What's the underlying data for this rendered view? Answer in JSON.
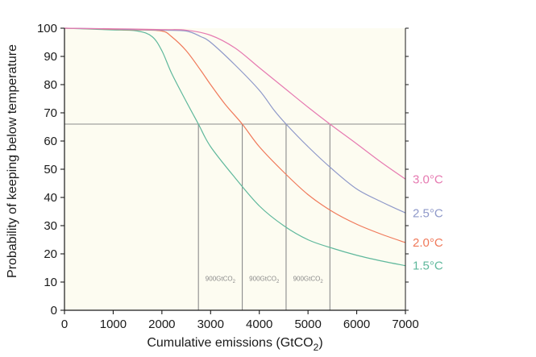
{
  "chart_data": {
    "type": "line",
    "xlabel": "Cumulative emissions (GtCO",
    "xlabel_sub": "2",
    "xlabel_end": ")",
    "ylabel": "Probability of keeping below temperature",
    "xlim": [
      0,
      7000
    ],
    "ylim": [
      0,
      100
    ],
    "xticks": [
      0,
      1000,
      2000,
      3000,
      4000,
      5000,
      6000,
      7000
    ],
    "yticks": [
      0,
      10,
      20,
      30,
      40,
      50,
      60,
      70,
      80,
      90,
      100
    ],
    "plot_background": "#fdfcf1",
    "threshold": 66,
    "threshold_color": "#8c8c8c",
    "series": [
      {
        "name": "1.5°C",
        "color": "#5fb89c",
        "x": [
          0,
          500,
          1000,
          1500,
          1800,
          2000,
          2200,
          2500,
          2750,
          3000,
          3500,
          4000,
          4500,
          5000,
          5500,
          6000,
          6500,
          7000
        ],
        "y": [
          100,
          99.7,
          99.4,
          99,
          97,
          92,
          84,
          74,
          66,
          58,
          47,
          37,
          30,
          25,
          22,
          19.5,
          17.5,
          15.8
        ]
      },
      {
        "name": "2.0°C",
        "color": "#f0795a",
        "x": [
          0,
          500,
          1000,
          1500,
          2000,
          2200,
          2500,
          2800,
          3000,
          3300,
          3650,
          4000,
          4500,
          5000,
          5500,
          6000,
          6500,
          7000
        ],
        "y": [
          100,
          99.8,
          99.6,
          99.4,
          99,
          97,
          92,
          85,
          80,
          73,
          66,
          58,
          49,
          41,
          35,
          30.5,
          27,
          24
        ]
      },
      {
        "name": "2.5°C",
        "color": "#8e98c9",
        "x": [
          0,
          1000,
          2000,
          2500,
          2800,
          3000,
          3500,
          4000,
          4300,
          4550,
          5000,
          5500,
          6000,
          6500,
          7000
        ],
        "y": [
          100,
          99.7,
          99.3,
          99,
          97,
          95,
          87,
          78,
          71,
          66,
          58,
          50,
          43,
          38.5,
          34.5
        ]
      },
      {
        "name": "3.0°C",
        "color": "#e67ab1",
        "x": [
          0,
          1000,
          2000,
          2500,
          3000,
          3500,
          4000,
          4500,
          5000,
          5450,
          6000,
          6500,
          7000
        ],
        "y": [
          100,
          99.8,
          99.5,
          99.3,
          97.5,
          93,
          86,
          79,
          72,
          66,
          59,
          52.5,
          46.5
        ]
      }
    ],
    "threshold_crossings": [
      2750,
      3650,
      4550,
      5450
    ],
    "span_labels": [
      {
        "text": "900GtCO",
        "sub": "2",
        "x": 3200
      },
      {
        "text": "900GtCO",
        "sub": "2",
        "x": 4100
      },
      {
        "text": "900GtCO",
        "sub": "2",
        "x": 5000
      }
    ],
    "span_label_y": 10.5
  }
}
